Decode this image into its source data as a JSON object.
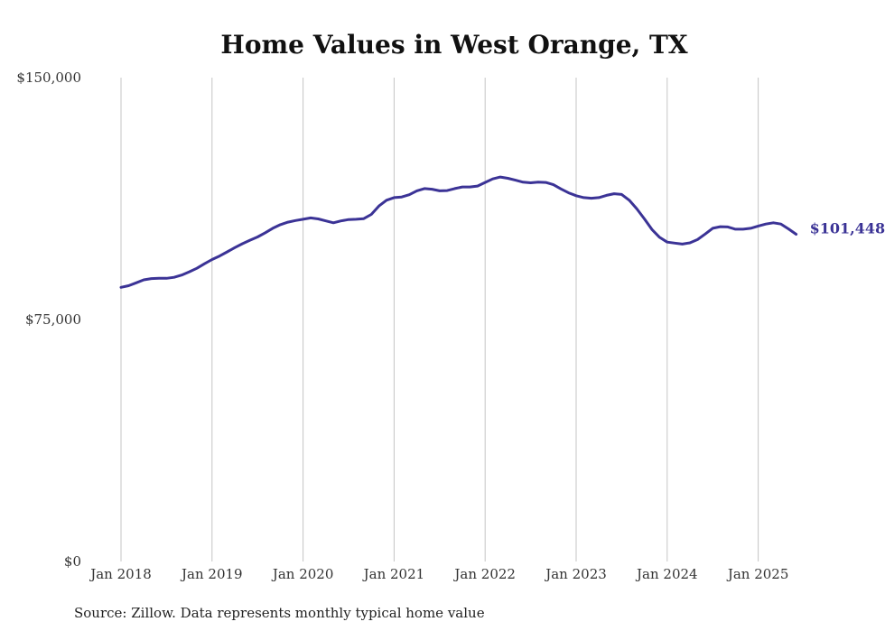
{
  "chart_data": {
    "type": "line",
    "title": "Home Values in West Orange, TX",
    "xlabel": "",
    "ylabel": "",
    "ylim": [
      0,
      150000
    ],
    "yticks": [
      0,
      75000,
      150000
    ],
    "ytick_labels": [
      "$0",
      "$75,000",
      "$150,000"
    ],
    "xticks": [
      "2018-01",
      "2019-01",
      "2020-01",
      "2021-01",
      "2022-01",
      "2023-01",
      "2024-01",
      "2025-01"
    ],
    "xtick_labels": [
      "Jan 2018",
      "Jan 2019",
      "Jan 2020",
      "Jan 2021",
      "Jan 2022",
      "Jan 2023",
      "Jan 2024",
      "Jan 2025"
    ],
    "x_start": "2018-01",
    "grid": "vertical",
    "line_color": "#3b3396",
    "end_label": "$101,448",
    "series": [
      {
        "values": [
          85000,
          85500,
          86400,
          87300,
          87700,
          87800,
          87800,
          88100,
          88800,
          89800,
          90900,
          92300,
          93600,
          94700,
          96000,
          97300,
          98500,
          99600,
          100600,
          101900,
          103300,
          104400,
          105200,
          105700,
          106100,
          106500,
          106200,
          105600,
          105000,
          105600,
          106000,
          106100,
          106300,
          107600,
          110200,
          112000,
          112800,
          113000,
          113700,
          114900,
          115600,
          115400,
          114900,
          115000,
          115600,
          116100,
          116100,
          116400,
          117500,
          118600,
          119200,
          118800,
          118200,
          117600,
          117400,
          117600,
          117500,
          116800,
          115500,
          114300,
          113400,
          112800,
          112600,
          112800,
          113500,
          114000,
          113800,
          112000,
          109300,
          106200,
          102900,
          100500,
          99000,
          98700,
          98400,
          98800,
          99800,
          101500,
          103300,
          103800,
          103700,
          103000,
          103000,
          103300,
          104000,
          104600,
          105000,
          104600,
          103100,
          101448
        ]
      }
    ]
  },
  "source_note": "Source: Zillow. Data represents monthly typical home value"
}
